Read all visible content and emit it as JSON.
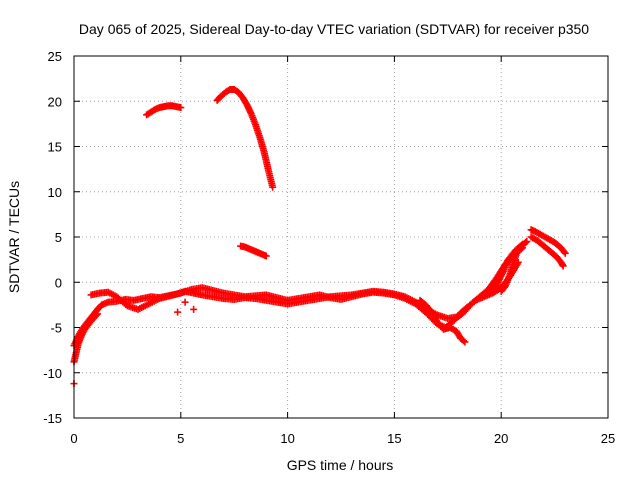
{
  "chart_data": {
    "type": "scatter",
    "title": "Day 065 of 2025, Sidereal Day-to-day VTEC variation (SDTVAR) for receiver p350",
    "xlabel": "GPS time / hours",
    "ylabel": "SDTVAR / TECUs",
    "xlim": [
      0,
      25
    ],
    "ylim": [
      -15,
      25
    ],
    "xticks": [
      0,
      5,
      10,
      15,
      20,
      25
    ],
    "yticks": [
      -15,
      -10,
      -5,
      0,
      5,
      10,
      15,
      20,
      25
    ],
    "grid": true,
    "marker": "plus",
    "series": [
      {
        "name": "SDTVAR",
        "color": "#ff0000",
        "segments": [
          {
            "x": [
              0.0,
              0.1,
              0.2,
              0.35,
              0.5,
              0.7,
              0.9,
              1.1
            ],
            "y": [
              -8.8,
              -7.8,
              -6.8,
              -5.9,
              -5.2,
              -4.6,
              -4.0,
              -3.5
            ]
          },
          {
            "x": [
              0.0,
              0.15,
              0.3,
              0.5,
              0.7,
              0.9,
              1.1,
              1.3,
              1.6,
              2.0,
              2.4,
              2.8,
              3.2,
              3.6,
              4.0,
              4.4,
              4.8,
              5.2,
              5.6,
              6.0,
              6.5,
              7.0,
              7.5,
              8.0,
              8.5,
              9.0,
              9.5,
              10.0,
              10.5,
              11.0,
              11.5,
              12.0,
              12.5,
              13.0,
              13.5,
              14.0,
              14.5,
              15.0,
              15.5,
              16.0,
              16.5,
              17.0,
              17.5,
              18.0,
              18.3,
              18.6,
              19.0,
              19.4,
              19.8,
              20.2,
              20.6,
              21.0
            ],
            "y": [
              -7.0,
              -6.2,
              -5.5,
              -4.8,
              -4.2,
              -3.6,
              -3.0,
              -2.5,
              -2.2,
              -2.1,
              -1.9,
              -2.0,
              -1.8,
              -1.6,
              -1.7,
              -1.5,
              -1.3,
              -1.0,
              -1.2,
              -1.4,
              -1.6,
              -1.8,
              -1.9,
              -1.7,
              -1.8,
              -2.0,
              -2.2,
              -2.4,
              -2.2,
              -2.0,
              -1.8,
              -1.6,
              -1.5,
              -1.4,
              -1.2,
              -1.0,
              -1.1,
              -1.3,
              -1.6,
              -2.2,
              -3.0,
              -3.6,
              -4.0,
              -3.8,
              -3.2,
              -2.4,
              -1.6,
              -0.8,
              0.5,
              2.0,
              3.0,
              3.8
            ]
          },
          {
            "x": [
              0.8,
              1.2,
              1.6,
              2.0,
              2.5,
              3.0,
              3.5,
              4.0,
              4.5,
              5.0,
              5.5,
              6.0,
              6.5,
              7.0,
              7.5,
              8.0,
              8.5,
              9.0,
              9.5,
              10.0,
              10.5,
              11.0,
              11.5,
              12.0,
              12.5,
              13.0,
              13.5,
              14.0,
              14.5,
              15.0,
              15.5,
              16.0,
              16.5,
              17.0,
              17.4,
              17.8,
              18.1,
              18.4,
              18.8,
              19.2,
              19.6,
              20.0,
              20.4,
              20.8
            ],
            "y": [
              -1.4,
              -1.2,
              -1.1,
              -1.6,
              -2.6,
              -3.0,
              -2.4,
              -1.8,
              -1.5,
              -1.2,
              -0.8,
              -0.6,
              -0.9,
              -1.2,
              -1.4,
              -1.6,
              -1.5,
              -1.4,
              -1.7,
              -2.0,
              -1.8,
              -1.6,
              -1.4,
              -1.7,
              -1.9,
              -1.6,
              -1.3,
              -1.1,
              -1.2,
              -1.4,
              -1.8,
              -2.4,
              -3.4,
              -4.6,
              -5.0,
              -4.2,
              -3.4,
              -2.8,
              -2.0,
              -1.6,
              -1.2,
              -0.6,
              0.6,
              2.2
            ]
          },
          {
            "x": [
              16.2,
              16.5,
              16.8,
              17.0,
              17.3,
              17.6,
              17.9,
              18.1,
              18.3
            ],
            "y": [
              -2.0,
              -2.6,
              -3.4,
              -4.4,
              -5.2,
              -5.0,
              -5.4,
              -6.2,
              -6.6
            ]
          },
          {
            "x": [
              19.5,
              19.8,
              20.1,
              20.3,
              20.5,
              20.7,
              20.9,
              21.1,
              21.2
            ],
            "y": [
              -1.2,
              -0.2,
              1.2,
              2.4,
              3.0,
              3.6,
              4.0,
              4.3,
              4.5
            ]
          },
          {
            "x": [
              20.0,
              20.2,
              20.4,
              20.6,
              20.8,
              21.0
            ],
            "y": [
              -1.0,
              -0.4,
              0.8,
              2.4,
              3.6,
              4.2
            ]
          },
          {
            "x": [
              21.4,
              21.6,
              21.9,
              22.2,
              22.5,
              22.8,
              23.0
            ],
            "y": [
              5.8,
              5.6,
              5.2,
              4.8,
              4.4,
              3.8,
              3.2
            ]
          },
          {
            "x": [
              21.4,
              21.7,
              22.0,
              22.3,
              22.6,
              22.8,
              22.9
            ],
            "y": [
              5.0,
              4.6,
              4.0,
              3.4,
              2.8,
              2.2,
              1.8
            ]
          },
          {
            "x": [
              3.4,
              3.6,
              3.8,
              4.0,
              4.2,
              4.4,
              4.6,
              4.8,
              5.0
            ],
            "y": [
              18.5,
              18.8,
              19.1,
              19.3,
              19.4,
              19.5,
              19.5,
              19.4,
              19.3
            ]
          },
          {
            "x": [
              6.7,
              6.9,
              7.1,
              7.3,
              7.5,
              7.7,
              7.9,
              8.1,
              8.3,
              8.5,
              8.7,
              8.9,
              9.1,
              9.3
            ],
            "y": [
              20.1,
              20.6,
              21.0,
              21.3,
              21.3,
              21.0,
              20.4,
              19.6,
              18.6,
              17.4,
              16.0,
              14.4,
              12.4,
              10.5
            ]
          },
          {
            "x": [
              7.8,
              8.0,
              8.2,
              8.4,
              8.6,
              8.8,
              9.0
            ],
            "y": [
              4.0,
              3.9,
              3.7,
              3.5,
              3.3,
              3.1,
              2.9
            ]
          }
        ],
        "isolated": [
          {
            "x": 0.0,
            "y": -11.2
          },
          {
            "x": 4.85,
            "y": -3.3
          },
          {
            "x": 5.2,
            "y": -2.2
          },
          {
            "x": 5.6,
            "y": -3.0
          }
        ]
      }
    ]
  }
}
